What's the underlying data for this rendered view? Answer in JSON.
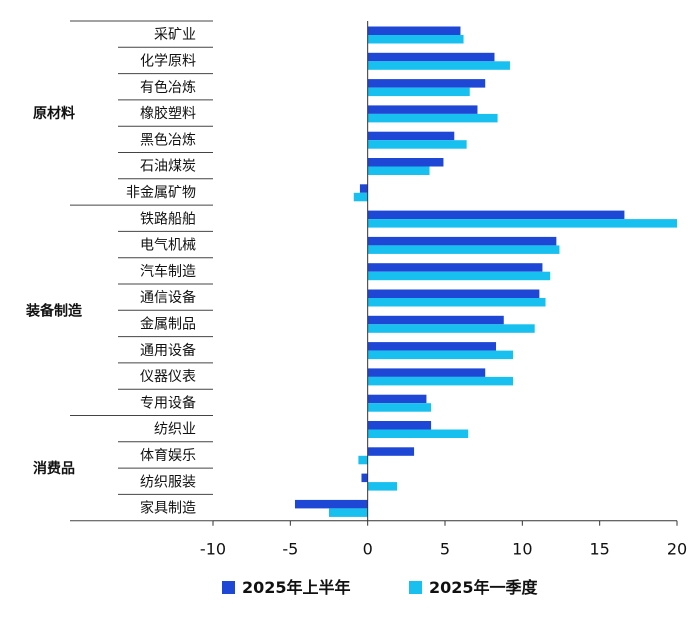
{
  "chart_data": {
    "type": "bar",
    "orientation": "horizontal",
    "categories": [
      "采矿业",
      "化学原料",
      "有色冶炼",
      "橡胶塑料",
      "黑色冶炼",
      "石油煤炭",
      "非金属矿物",
      "铁路船舶",
      "电气机械",
      "汽车制造",
      "通信设备",
      "金属制品",
      "通用设备",
      "仪器仪表",
      "专用设备",
      "纺织业",
      "体育娱乐",
      "纺织服装",
      "家具制造"
    ],
    "groups": [
      {
        "name": "原材料",
        "categories": [
          "采矿业",
          "化学原料",
          "有色冶炼",
          "橡胶塑料",
          "黑色冶炼",
          "石油煤炭",
          "非金属矿物"
        ]
      },
      {
        "name": "装备制造",
        "categories": [
          "铁路船舶",
          "电气机械",
          "汽车制造",
          "通信设备",
          "金属制品",
          "通用设备",
          "仪器仪表",
          "专用设备"
        ]
      },
      {
        "name": "消费品",
        "categories": [
          "纺织业",
          "体育娱乐",
          "纺织服装",
          "家具制造"
        ]
      }
    ],
    "series": [
      {
        "name": "2025年上半年",
        "color": "#1f47d6",
        "values": [
          6.0,
          8.2,
          7.6,
          7.1,
          5.6,
          4.9,
          -0.5,
          16.6,
          12.2,
          11.3,
          11.1,
          8.8,
          8.3,
          7.6,
          3.8,
          4.1,
          3.0,
          -0.4,
          -4.7
        ]
      },
      {
        "name": "2025年一季度",
        "color": "#18c0ef",
        "values": [
          6.2,
          9.2,
          6.6,
          8.4,
          6.4,
          4.0,
          -0.9,
          20.0,
          12.4,
          11.8,
          11.5,
          10.8,
          9.4,
          9.4,
          4.1,
          6.5,
          -0.6,
          1.9,
          -2.5
        ]
      }
    ],
    "xlim": [
      -10,
      20
    ],
    "xticks": [
      "-10",
      "-5",
      "0",
      "5",
      "10",
      "15",
      "20"
    ],
    "legend_position": "bottom"
  }
}
